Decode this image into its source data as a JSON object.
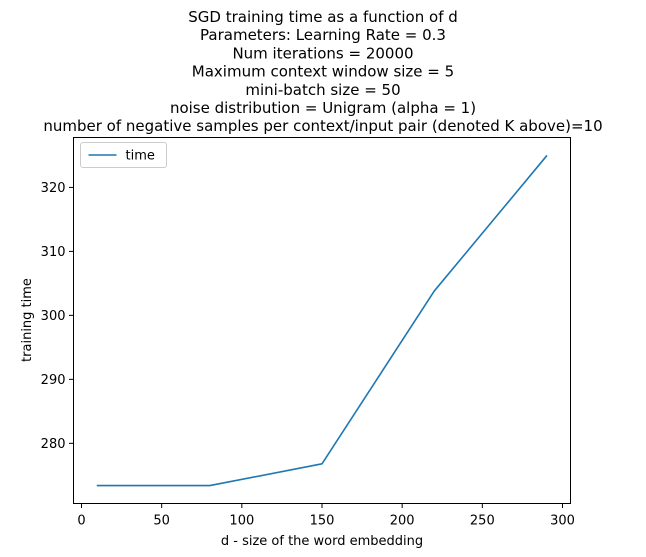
{
  "chart_data": {
    "type": "line",
    "title_lines": [
      "SGD training time as a function of d",
      "Parameters: Learning Rate = 0.3",
      "Num iterations = 20000",
      "Maximum context window size = 5",
      "mini-batch size = 50",
      "noise distribution = Unigram (alpha = 1)",
      "number of negative samples per context/input pair (denoted K above)=10"
    ],
    "xlabel": "d - size of the word embedding",
    "ylabel": "training time",
    "xlim": [
      -5,
      305
    ],
    "ylim": [
      270.6,
      327.8
    ],
    "xticks": [
      0,
      50,
      100,
      150,
      200,
      250,
      300
    ],
    "yticks": [
      280,
      290,
      300,
      310,
      320
    ],
    "grid": false,
    "legend_position": "top-left",
    "series": [
      {
        "name": "time",
        "color": "#1f77b4",
        "x": [
          10,
          80,
          150,
          220,
          290
        ],
        "y": [
          273.4,
          273.4,
          276.8,
          303.8,
          324.9
        ]
      }
    ]
  }
}
